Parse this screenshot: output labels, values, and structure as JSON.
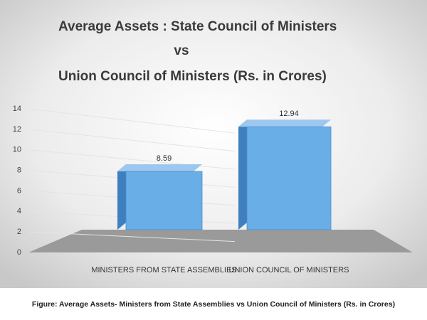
{
  "chart_data": {
    "type": "bar3d",
    "title": [
      "Average Assets : State Council of Ministers",
      "vs",
      "Union Council of Ministers  (Rs. in Crores)"
    ],
    "categories": [
      "MINISTERS FROM STATE ASSEMBLIES",
      "UNION COUNCIL OF MINISTERS"
    ],
    "values": [
      8.59,
      12.94
    ],
    "color": "#6aaee8",
    "ylim": [
      0,
      14
    ],
    "yticks": [
      0,
      2,
      4,
      6,
      8,
      10,
      12,
      14
    ],
    "grid": true,
    "caption": "Figure: Average Assets- Ministers from State Assemblies vs Union Council of Ministers (Rs. in Crores)"
  }
}
